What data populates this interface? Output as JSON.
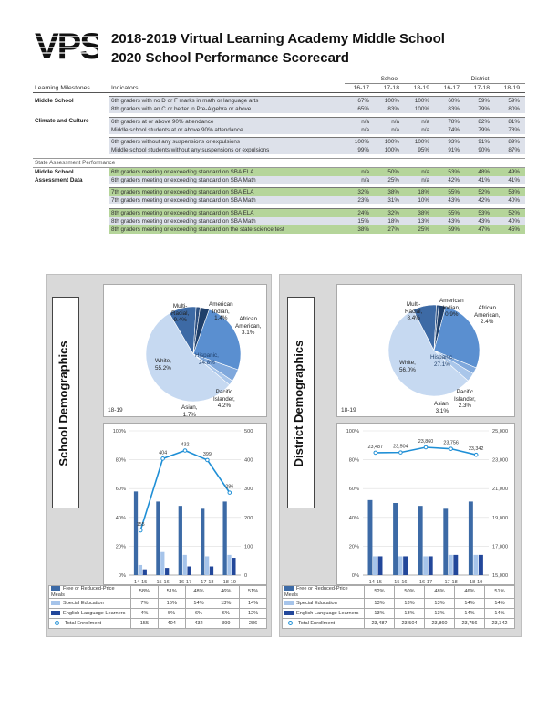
{
  "logo": {
    "text": "VPS"
  },
  "title": {
    "line1": "2018-2019 Virtual Learning Academy Middle School",
    "line2": "2020 School Performance Scorecard"
  },
  "scorecard": {
    "group_school": "School",
    "group_district": "District",
    "col_milestones": "Learning Milestones",
    "col_indicators": "Indicators",
    "years": [
      "16-17",
      "17-18",
      "18-19",
      "16-17",
      "17-18",
      "18-19"
    ],
    "section_assessment": "State Assessment Performance",
    "rows": [
      {
        "milestone": "Middle School",
        "indicator": "6th graders with no D or F marks in math or language arts",
        "vals": [
          "67%",
          "100%",
          "100%",
          "60%",
          "59%",
          "59%"
        ]
      },
      {
        "milestone": "",
        "indicator": "8th graders with an C or better in Pre-Algebra or above",
        "vals": [
          "65%",
          "83%",
          "100%",
          "83%",
          "79%",
          "80%"
        ]
      },
      {
        "milestone": "Climate and Culture",
        "indicator": "6th graders at or above 90% attendance",
        "vals": [
          "n/a",
          "n/a",
          "n/a",
          "78%",
          "82%",
          "81%"
        ]
      },
      {
        "milestone": "",
        "indicator": "Middle school students at or above 90% attendance",
        "vals": [
          "n/a",
          "n/a",
          "n/a",
          "74%",
          "79%",
          "78%"
        ]
      },
      {
        "milestone": "",
        "indicator": "6th graders without any suspensions or expulsions",
        "vals": [
          "100%",
          "100%",
          "100%",
          "93%",
          "91%",
          "89%"
        ]
      },
      {
        "milestone": "",
        "indicator": "Middle school students without any suspensions or expulsions",
        "vals": [
          "99%",
          "100%",
          "95%",
          "91%",
          "90%",
          "87%"
        ]
      },
      {
        "milestone": "Middle School",
        "indicator": "6th graders meeting or exceeding standard on SBA ELA",
        "vals": [
          "n/a",
          "50%",
          "n/a",
          "53%",
          "48%",
          "49%"
        ]
      },
      {
        "milestone": "Assessment Data",
        "indicator": "6th graders meeting or exceeding standard on SBA Math",
        "vals": [
          "n/a",
          "25%",
          "n/a",
          "42%",
          "41%",
          "41%"
        ]
      },
      {
        "milestone": "",
        "indicator": "7th graders meeting or exceeding standard on SBA ELA",
        "vals": [
          "32%",
          "38%",
          "18%",
          "55%",
          "52%",
          "53%"
        ]
      },
      {
        "milestone": "",
        "indicator": "7th graders meeting or exceeding standard on SBA Math",
        "vals": [
          "23%",
          "31%",
          "10%",
          "43%",
          "42%",
          "40%"
        ]
      },
      {
        "milestone": "",
        "indicator": "8th graders meeting or exceeding standard on SBA ELA",
        "vals": [
          "24%",
          "32%",
          "38%",
          "55%",
          "53%",
          "52%"
        ]
      },
      {
        "milestone": "",
        "indicator": "8th graders meeting or exceeding standard on SBA Math",
        "vals": [
          "15%",
          "18%",
          "13%",
          "43%",
          "43%",
          "40%"
        ]
      },
      {
        "milestone": "",
        "indicator": "8th graders meeting or exceeding standard on the state science test",
        "vals": [
          "38%",
          "27%",
          "25%",
          "59%",
          "47%",
          "45%"
        ]
      }
    ]
  },
  "school_panel": {
    "title": "School Demographics",
    "pie_year": "18-19",
    "pie_labels": {
      "multi": "Multi-\nRacial,\n9.4%",
      "amind": "American\nIndian,\n1.4%",
      "afam": "African\nAmerican,\n3.1%",
      "hisp": "Hispanic,\n24.8%",
      "pac": "Pacific\nIslander,\n4.2%",
      "asian": "Asian,\n1.7%",
      "white": "White,\n55.2%"
    },
    "legend": {
      "frl": "Free or Reduced-Price Meals",
      "sped": "Special Education",
      "ell": "English Language Learners",
      "enroll": "Total Enrollment",
      "frl_vals": [
        "58%",
        "51%",
        "48%",
        "46%",
        "51%"
      ],
      "sped_vals": [
        "7%",
        "16%",
        "14%",
        "13%",
        "14%"
      ],
      "ell_vals": [
        "4%",
        "5%",
        "6%",
        "6%",
        "12%"
      ],
      "enroll_vals": [
        "155",
        "404",
        "432",
        "399",
        "286"
      ]
    }
  },
  "district_panel": {
    "title": "District Demographics",
    "pie_year": "18-19",
    "pie_labels": {
      "multi": "Multi-\nRacial,\n8.4%",
      "amind": "American\nIndian,\n0.9%",
      "afam": "African\nAmerican,\n2.4%",
      "hisp": "Hispanic,\n27.1%",
      "pac": "Pacific\nIslander,\n2.3%",
      "asian": "Asian,\n3.1%",
      "white": "White,\n56.0%"
    },
    "legend": {
      "frl": "Free or Reduced-Price Meals",
      "sped": "Special Education",
      "ell": "English Language Learners",
      "enroll": "Total Enrollment",
      "frl_vals": [
        "52%",
        "50%",
        "48%",
        "46%",
        "51%"
      ],
      "sped_vals": [
        "13%",
        "13%",
        "13%",
        "14%",
        "14%"
      ],
      "ell_vals": [
        "13%",
        "13%",
        "13%",
        "14%",
        "14%"
      ],
      "enroll_vals": [
        "23,487",
        "23,504",
        "23,860",
        "23,756",
        "23,342"
      ]
    }
  },
  "chart_data": [
    {
      "type": "pie",
      "categories": [
        "Multi-Racial",
        "American Indian",
        "African American",
        "Hispanic",
        "Pacific Islander",
        "Asian",
        "White"
      ],
      "values": [
        9.4,
        1.4,
        3.1,
        24.8,
        4.2,
        1.7,
        55.2
      ],
      "colors": [
        "#3d6aa5",
        "#2c4f80",
        "#1f3f6a",
        "#5a8fd0",
        "#7fa8dc",
        "#a9c6ea",
        "#c6d9f1"
      ],
      "subtitle": "18-19"
    },
    {
      "type": "pie",
      "categories": [
        "Multi-Racial",
        "American Indian",
        "African American",
        "Hispanic",
        "Pacific Islander",
        "Asian",
        "White"
      ],
      "values": [
        8.4,
        0.9,
        2.4,
        27.1,
        2.3,
        3.1,
        56.0
      ],
      "colors": [
        "#3d6aa5",
        "#2c4f80",
        "#1f3f6a",
        "#5a8fd0",
        "#7fa8dc",
        "#a9c6ea",
        "#c6d9f1"
      ],
      "subtitle": "18-19"
    },
    {
      "type": "bar",
      "categories": [
        "14-15",
        "15-16",
        "16-17",
        "17-18",
        "18-19"
      ],
      "series": [
        {
          "name": "Free or Reduced-Price Meals",
          "values": [
            58,
            51,
            48,
            46,
            51
          ],
          "color": "#3c6aa6"
        },
        {
          "name": "Special Education",
          "values": [
            7,
            16,
            14,
            13,
            14
          ],
          "color": "#a6c4ea"
        },
        {
          "name": "English Language Learners",
          "values": [
            4,
            5,
            6,
            6,
            12
          ],
          "color": "#22479a"
        }
      ],
      "line": {
        "name": "Total Enrollment",
        "values": [
          155,
          404,
          432,
          399,
          286
        ],
        "labels": [
          "155",
          "404",
          "432",
          "399",
          "286"
        ],
        "color": "#1f8fd6"
      },
      "ylim": [
        0,
        100
      ],
      "y_ticks": [
        "0%",
        "20%",
        "40%",
        "60%",
        "80%",
        "100%"
      ],
      "y2lim": [
        0,
        500
      ],
      "y2_ticks": [
        "0",
        "100",
        "200",
        "300",
        "400",
        "500"
      ]
    },
    {
      "type": "bar",
      "categories": [
        "14-15",
        "15-16",
        "16-17",
        "17-18",
        "18-19"
      ],
      "series": [
        {
          "name": "Free or Reduced-Price Meals",
          "values": [
            52,
            50,
            48,
            46,
            51
          ],
          "color": "#3c6aa6"
        },
        {
          "name": "Special Education",
          "values": [
            13,
            13,
            13,
            14,
            14
          ],
          "color": "#a6c4ea"
        },
        {
          "name": "English Language Learners",
          "values": [
            13,
            13,
            13,
            14,
            14
          ],
          "color": "#22479a"
        }
      ],
      "line": {
        "name": "Total Enrollment",
        "values": [
          23487,
          23504,
          23860,
          23756,
          23342
        ],
        "labels": [
          "23,487",
          "23,504",
          "23,860",
          "23,756",
          "23,342"
        ],
        "color": "#1f8fd6"
      },
      "ylim": [
        0,
        100
      ],
      "y_ticks": [
        "0%",
        "20%",
        "40%",
        "60%",
        "80%",
        "100%"
      ],
      "y2lim": [
        15000,
        25000
      ],
      "y2_ticks": [
        "15,000",
        "17,000",
        "19,000",
        "21,000",
        "23,000",
        "25,000"
      ]
    }
  ]
}
